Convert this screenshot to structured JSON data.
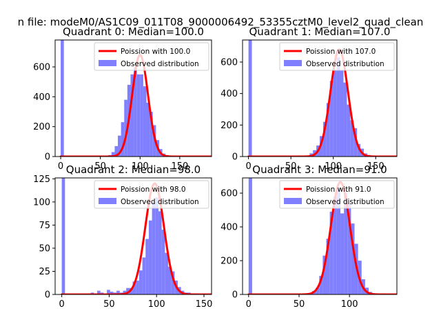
{
  "figure": {
    "suptitle": "n file: modeM0/AS1C09_011T08_9000006492_53355cztM0_level2_quad_clean"
  },
  "colors": {
    "fit_line": "#ff0000",
    "histogram": "#8080ff",
    "axes": "#000000",
    "background": "#ffffff",
    "legend_border": "#cccccc"
  },
  "chart_data": [
    {
      "type": "bar",
      "title": "Quadrant 0: Median=100.0",
      "xticks": [
        0,
        50,
        100,
        150
      ],
      "yticks": [
        0,
        200,
        400,
        600
      ],
      "xlim": [
        -7,
        190
      ],
      "ylim": [
        0,
        780
      ],
      "legend": {
        "placement": "top-right",
        "entries": [
          "Poission with 100.0",
          "Observed distribution"
        ]
      },
      "poisson": {
        "mean": 100.0,
        "peak": 680
      },
      "histogram": {
        "bin_width": 4,
        "bin_starts": [
          0,
          4,
          8,
          12,
          16,
          20,
          24,
          28,
          32,
          36,
          40,
          44,
          48,
          52,
          56,
          60,
          64,
          68,
          72,
          76,
          80,
          84,
          88,
          92,
          96,
          100,
          104,
          108,
          112,
          116,
          120,
          124,
          128,
          132,
          136,
          140,
          144,
          148,
          152,
          156,
          160,
          164,
          168,
          172,
          176,
          180
        ],
        "values": [
          785,
          0,
          0,
          0,
          0,
          0,
          0,
          0,
          0,
          0,
          0,
          0,
          0,
          0,
          5,
          10,
          30,
          70,
          140,
          230,
          380,
          480,
          550,
          600,
          550,
          550,
          470,
          360,
          300,
          210,
          110,
          50,
          20,
          10,
          5,
          2,
          0,
          0,
          0,
          0,
          0,
          0,
          0,
          0,
          0,
          0
        ]
      }
    },
    {
      "type": "bar",
      "title": "Quadrant 1: Median=107.0",
      "xticks": [
        0,
        50,
        100,
        150
      ],
      "yticks": [
        0,
        200,
        400,
        600
      ],
      "xlim": [
        -7,
        175
      ],
      "ylim": [
        0,
        740
      ],
      "legend": {
        "placement": "top-right",
        "entries": [
          "Poission with 107.0",
          "Observed distribution"
        ]
      },
      "poisson": {
        "mean": 107.0,
        "peak": 680
      },
      "histogram": {
        "bin_width": 4,
        "bin_starts": [
          0,
          4,
          8,
          12,
          16,
          20,
          24,
          28,
          32,
          36,
          40,
          44,
          48,
          52,
          56,
          60,
          64,
          68,
          72,
          76,
          80,
          84,
          88,
          92,
          96,
          100,
          104,
          108,
          112,
          116,
          120,
          124,
          128,
          132,
          136,
          140,
          144,
          148,
          152,
          156,
          160,
          164
        ],
        "values": [
          740,
          0,
          0,
          0,
          0,
          0,
          0,
          0,
          0,
          0,
          0,
          0,
          0,
          0,
          0,
          0,
          0,
          5,
          20,
          40,
          70,
          130,
          220,
          340,
          480,
          550,
          630,
          550,
          470,
          330,
          230,
          180,
          80,
          50,
          20,
          10,
          2,
          0,
          0,
          0,
          0,
          0
        ]
      }
    },
    {
      "type": "bar",
      "title": "Quadrant 2: Median=98.0",
      "xticks": [
        0,
        50,
        100,
        150
      ],
      "yticks": [
        0,
        25,
        50,
        75,
        100,
        125
      ],
      "xlim": [
        -7,
        158
      ],
      "ylim": [
        0,
        126
      ],
      "legend": {
        "placement": "top-right",
        "entries": [
          "Poission with 98.0",
          "Observed distribution"
        ]
      },
      "poisson": {
        "mean": 98.0,
        "peak": 120
      },
      "histogram": {
        "bin_width": 3.4,
        "bin_starts": [
          0,
          3.4,
          6.8,
          10.2,
          13.6,
          17,
          20.4,
          23.8,
          27.2,
          30.6,
          34,
          37.4,
          40.8,
          44.2,
          47.6,
          51,
          54.4,
          57.8,
          61.2,
          64.6,
          68,
          71.4,
          74.8,
          78.2,
          81.6,
          85,
          88.4,
          91.8,
          95.2,
          98.6,
          102,
          105.4,
          108.8,
          112.2,
          115.6,
          119,
          122.4,
          125.8,
          129.2,
          132.6,
          136,
          139.4,
          142.8,
          146.2
        ],
        "values": [
          126,
          0,
          0,
          0,
          0,
          0,
          0,
          0,
          0,
          2,
          1,
          4,
          2,
          1,
          5,
          3,
          2,
          4,
          2,
          4,
          7,
          7,
          14,
          15,
          26,
          40,
          60,
          80,
          100,
          105,
          90,
          70,
          45,
          30,
          25,
          15,
          8,
          4,
          2,
          2,
          1,
          0,
          0,
          0
        ]
      }
    },
    {
      "type": "bar",
      "title": "Quadrant 3: Median=91.0",
      "xticks": [
        0,
        50,
        100
      ],
      "yticks": [
        0,
        200,
        400,
        600
      ],
      "xlim": [
        -6,
        147
      ],
      "ylim": [
        0,
        690
      ],
      "legend": {
        "placement": "top-right",
        "entries": [
          "Poission with 91.0",
          "Observed distribution"
        ]
      },
      "poisson": {
        "mean": 91.0,
        "peak": 665
      },
      "histogram": {
        "bin_width": 3.5,
        "bin_starts": [
          0,
          3.5,
          7,
          10.5,
          14,
          17.5,
          21,
          24.5,
          28,
          31.5,
          35,
          38.5,
          42,
          45.5,
          49,
          52.5,
          56,
          59.5,
          63,
          66.5,
          70,
          73.5,
          77,
          80.5,
          84,
          87.5,
          91,
          94.5,
          98,
          101.5,
          105,
          108.5,
          112,
          115.5,
          119,
          122.5,
          126,
          129.5,
          133
        ],
        "values": [
          690,
          0,
          0,
          0,
          0,
          0,
          0,
          0,
          0,
          0,
          0,
          0,
          0,
          0,
          0,
          0,
          3,
          8,
          20,
          40,
          110,
          230,
          330,
          490,
          580,
          630,
          480,
          600,
          540,
          420,
          300,
          200,
          90,
          40,
          15,
          5,
          2,
          0,
          0
        ]
      }
    }
  ]
}
